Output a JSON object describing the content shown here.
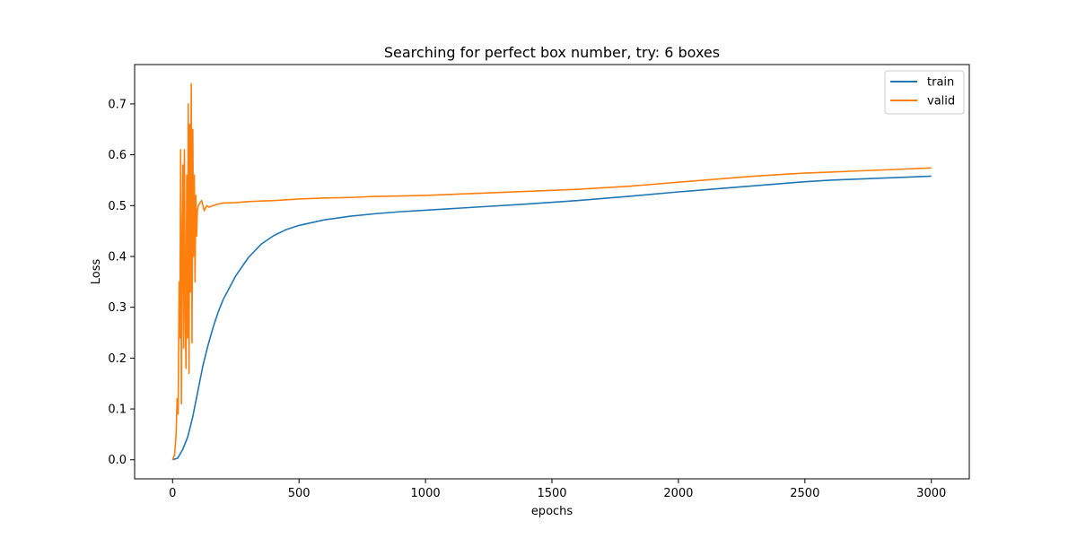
{
  "chart_data": {
    "type": "line",
    "title": "Searching for perfect box number, try: 6 boxes",
    "xlabel": "epochs",
    "ylabel": "Loss",
    "xlim": [
      -150,
      3150
    ],
    "ylim": [
      -0.0375,
      0.7775
    ],
    "xticks": [
      0,
      500,
      1000,
      1500,
      2000,
      2500,
      3000
    ],
    "yticks": [
      0.0,
      0.1,
      0.2,
      0.3,
      0.4,
      0.5,
      0.6,
      0.7
    ],
    "ytick_labels": [
      "0.0",
      "0.1",
      "0.2",
      "0.3",
      "0.4",
      "0.5",
      "0.6",
      "0.7"
    ],
    "legend_position": "top-right",
    "grid": false,
    "series": [
      {
        "name": "train",
        "color": "#1f77b4",
        "x": [
          0,
          20,
          40,
          60,
          80,
          100,
          120,
          140,
          160,
          180,
          200,
          250,
          300,
          350,
          400,
          450,
          500,
          600,
          700,
          800,
          900,
          1000,
          1200,
          1400,
          1600,
          1800,
          2000,
          2200,
          2400,
          2500,
          2600,
          2800,
          3000
        ],
        "values": [
          0.0,
          0.003,
          0.02,
          0.045,
          0.085,
          0.135,
          0.185,
          0.225,
          0.26,
          0.29,
          0.315,
          0.362,
          0.398,
          0.424,
          0.441,
          0.453,
          0.461,
          0.472,
          0.479,
          0.484,
          0.488,
          0.491,
          0.497,
          0.503,
          0.51,
          0.518,
          0.527,
          0.535,
          0.543,
          0.547,
          0.55,
          0.554,
          0.558
        ]
      },
      {
        "name": "valid",
        "color": "#ff7f0e",
        "x": [
          0,
          8,
          14,
          18,
          22,
          26,
          29,
          32,
          35,
          38,
          41,
          44,
          47,
          50,
          53,
          56,
          59,
          62,
          65,
          68,
          71,
          74,
          77,
          80,
          83,
          86,
          89,
          92,
          95,
          98,
          102,
          108,
          115,
          125,
          135,
          145,
          160,
          180,
          200,
          250,
          300,
          350,
          400,
          500,
          600,
          700,
          800,
          900,
          1000,
          1100,
          1200,
          1300,
          1400,
          1500,
          1600,
          1700,
          1800,
          1900,
          2000,
          2100,
          2200,
          2300,
          2400,
          2500,
          2600,
          2700,
          2800,
          2900,
          3000
        ],
        "values": [
          0.0,
          0.01,
          0.05,
          0.12,
          0.09,
          0.35,
          0.24,
          0.61,
          0.11,
          0.42,
          0.58,
          0.22,
          0.61,
          0.3,
          0.18,
          0.56,
          0.24,
          0.7,
          0.17,
          0.66,
          0.33,
          0.74,
          0.23,
          0.65,
          0.4,
          0.56,
          0.35,
          0.52,
          0.44,
          0.49,
          0.5,
          0.505,
          0.51,
          0.49,
          0.5,
          0.497,
          0.5,
          0.503,
          0.505,
          0.506,
          0.508,
          0.509,
          0.51,
          0.513,
          0.515,
          0.516,
          0.518,
          0.519,
          0.52,
          0.522,
          0.524,
          0.526,
          0.528,
          0.53,
          0.532,
          0.535,
          0.538,
          0.542,
          0.546,
          0.55,
          0.554,
          0.558,
          0.561,
          0.564,
          0.566,
          0.568,
          0.57,
          0.572,
          0.574
        ]
      }
    ]
  }
}
